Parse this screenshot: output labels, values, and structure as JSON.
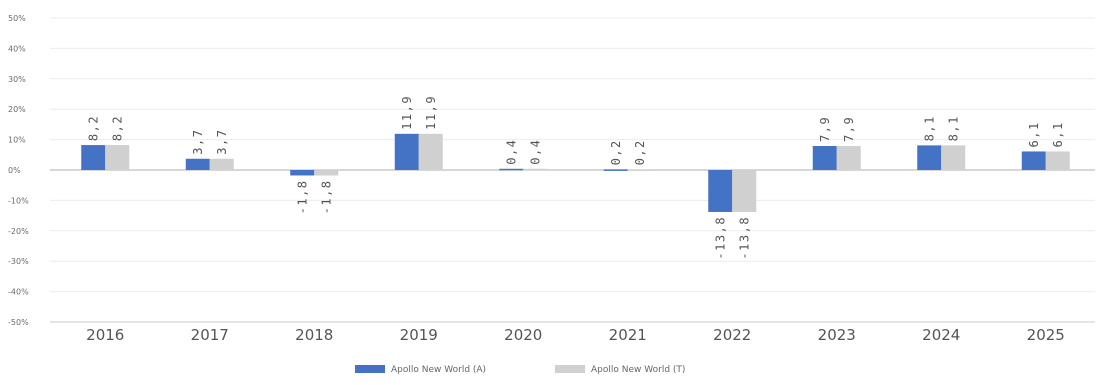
{
  "chart_data": {
    "type": "bar",
    "title": "",
    "xlabel": "",
    "ylabel": "",
    "categories": [
      "2016",
      "2017",
      "2018",
      "2019",
      "2020",
      "2021",
      "2022",
      "2023",
      "2024",
      "2025"
    ],
    "series": [
      {
        "name": "Apollo New World (A)",
        "color": "#4472c4",
        "values": [
          8.2,
          3.7,
          -1.8,
          11.9,
          0.4,
          0.2,
          -13.8,
          7.9,
          8.1,
          6.1
        ],
        "labels": [
          "8,2",
          "3,7",
          "-1,8",
          "11,9",
          "0,4",
          "0,2",
          "-13,8",
          "7,9",
          "8,1",
          "6,1"
        ]
      },
      {
        "name": "Apollo New World (T)",
        "color": "#d0d0d0",
        "values": [
          8.2,
          3.7,
          -1.8,
          11.9,
          0.4,
          0.2,
          -13.8,
          7.9,
          8.1,
          6.1
        ],
        "labels": [
          "8,2",
          "3,7",
          "-1,8",
          "11,9",
          "0,4",
          "0,2",
          "-13,8",
          "7,9",
          "8,1",
          "6,1"
        ]
      }
    ],
    "ylim": [
      -50,
      50
    ],
    "yticks": [
      50,
      40,
      30,
      20,
      10,
      0,
      -10,
      -20,
      -30,
      -40,
      -50
    ],
    "ytick_labels": [
      "50%",
      "40%",
      "30%",
      "20%",
      "10%",
      "0%",
      "-10%",
      "-20%",
      "-30%",
      "-40%",
      "-50%"
    ],
    "grid": true,
    "legend_position": "bottom-center"
  }
}
